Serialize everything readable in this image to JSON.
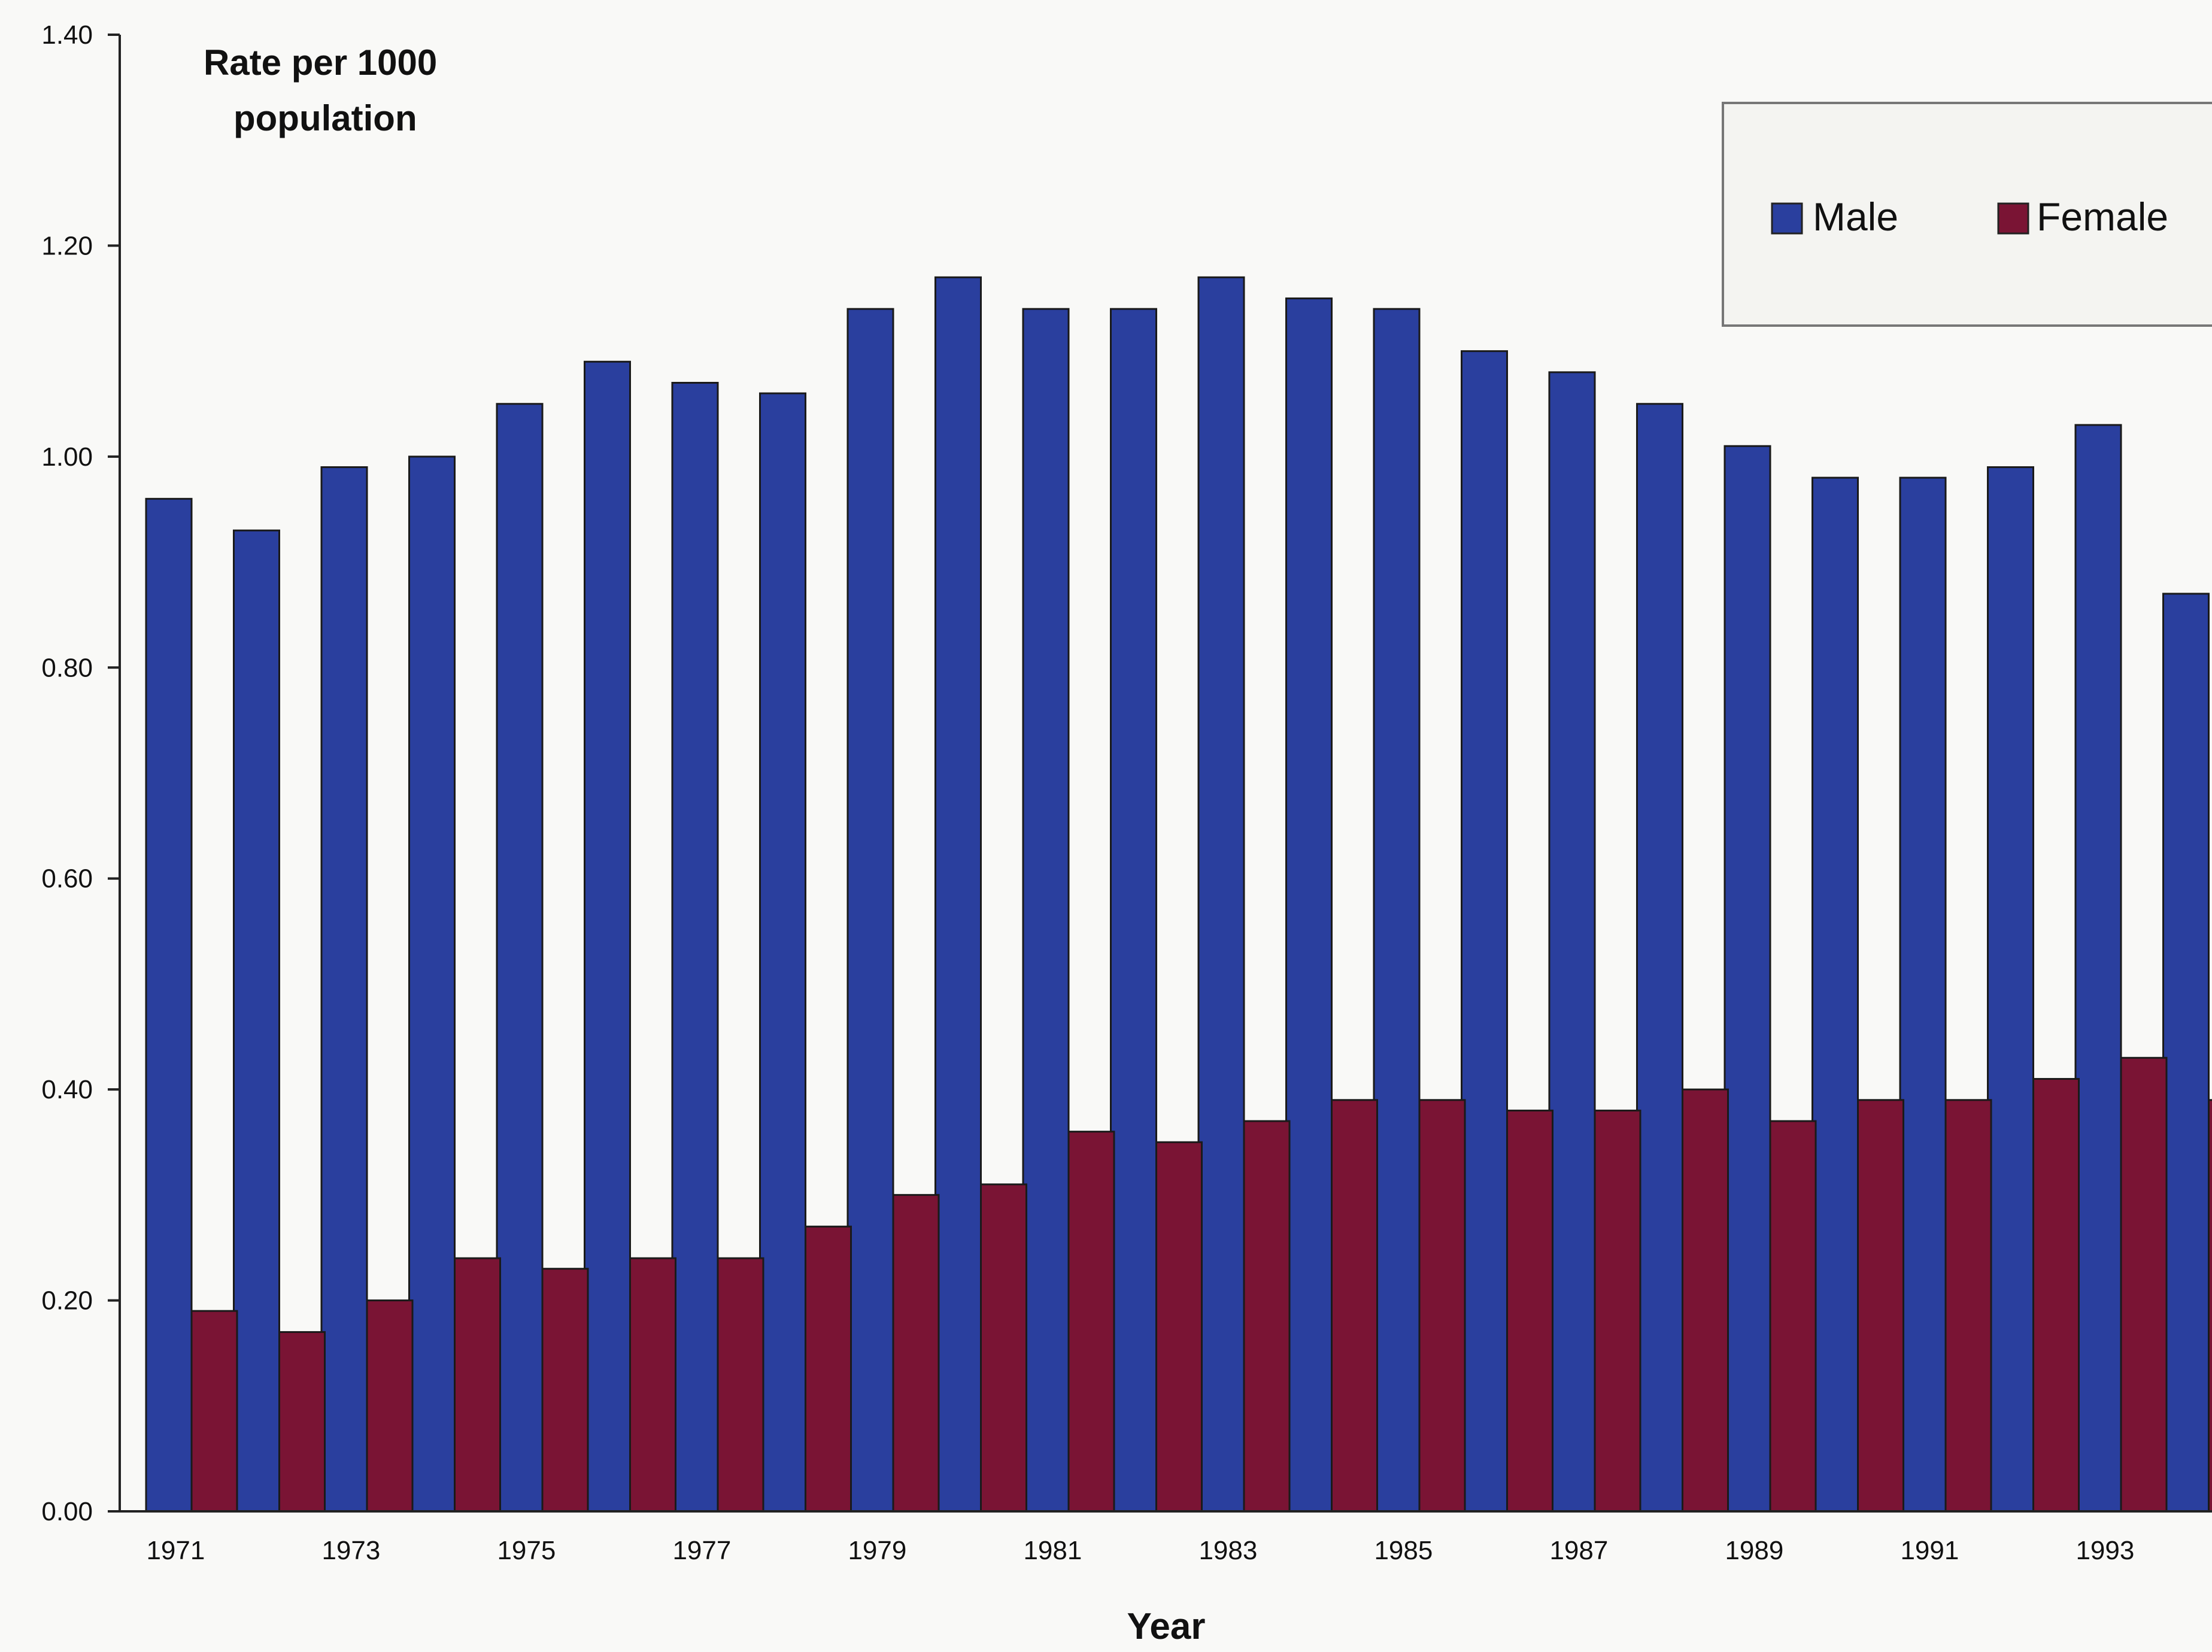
{
  "chart_data": {
    "type": "bar",
    "xlabel": "Year",
    "ylabel_lines": [
      "Rate per 1000",
      "population"
    ],
    "ylim": [
      0,
      1.4
    ],
    "y_ticks": [
      "0.00",
      "0.20",
      "0.40",
      "0.60",
      "0.80",
      "1.00",
      "1.20",
      "1.40"
    ],
    "y_tick_values": [
      0,
      0.2,
      0.4,
      0.6,
      0.8,
      1.0,
      1.2,
      1.4
    ],
    "categories": [
      "1971",
      "1972",
      "1973",
      "1974",
      "1975",
      "1976",
      "1977",
      "1978",
      "1979",
      "1980",
      "1981",
      "1982",
      "1983",
      "1984",
      "1985",
      "1986",
      "1987",
      "1988",
      "1989",
      "1990",
      "1991",
      "1992",
      "1993",
      "1994"
    ],
    "x_tick_labels": [
      "1971",
      "",
      "1973",
      "",
      "1975",
      "",
      "1977",
      "",
      "1979",
      "",
      "1981",
      "",
      "1983",
      "",
      "1985",
      "",
      "1987",
      "",
      "1989",
      "",
      "1991",
      "",
      "1993",
      ""
    ],
    "series": [
      {
        "name": "Male",
        "color": "#2a3f9e",
        "values": [
          0.96,
          0.93,
          0.99,
          1.0,
          1.05,
          1.09,
          1.07,
          1.06,
          1.14,
          1.17,
          1.14,
          1.14,
          1.17,
          1.15,
          1.14,
          1.1,
          1.08,
          1.05,
          1.01,
          0.98,
          0.98,
          0.99,
          1.03,
          0.87
        ]
      },
      {
        "name": "Female",
        "color": "#7a1434",
        "values": [
          0.19,
          0.17,
          0.2,
          0.24,
          0.23,
          0.24,
          0.24,
          0.27,
          0.3,
          0.31,
          0.36,
          0.35,
          0.37,
          0.39,
          0.39,
          0.38,
          0.38,
          0.4,
          0.37,
          0.39,
          0.39,
          0.41,
          0.43,
          0.39
        ]
      }
    ],
    "legend_position": "top-right",
    "grid": false
  }
}
